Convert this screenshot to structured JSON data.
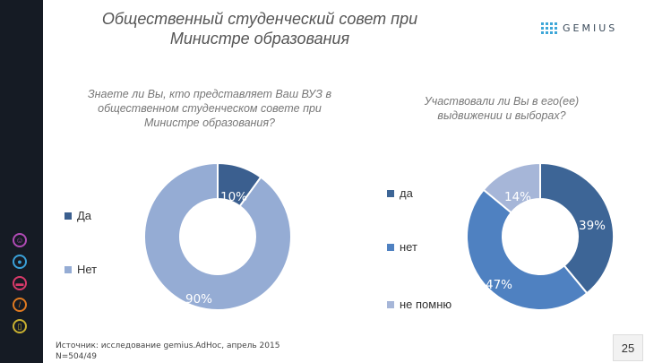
{
  "slide": {
    "title": "Общественный студенческий совет при Министре образования",
    "logo_text": "GEMIUS",
    "source_line1": "Источник: исследование gemius.AdHoc, апрель 2015",
    "source_line2": "N=504/49",
    "page_number": "25",
    "sidebar_icons": [
      "people-icon",
      "lightbulb-icon",
      "chat-icon",
      "wrench-icon",
      "document-icon"
    ]
  },
  "chart_data": [
    {
      "type": "pie",
      "title": "Знаете ли Вы, кто представляет Ваш ВУЗ в общественном студенческом совете при Министре образования?",
      "categories": [
        "Да",
        "Нет"
      ],
      "values": [
        10,
        90
      ],
      "labels": [
        "10%",
        "90%"
      ],
      "colors": [
        "#3b5f8f",
        "#95acd4"
      ],
      "legend_position": "left"
    },
    {
      "type": "pie",
      "title": "Участвовали ли Вы в его(ее) выдвижении и выборах?",
      "categories": [
        "да",
        "нет",
        "не помню"
      ],
      "values": [
        39,
        47,
        14
      ],
      "labels": [
        "39%",
        "47%",
        "14%"
      ],
      "colors": [
        "#3d6596",
        "#4f81c1",
        "#a6b6d8"
      ],
      "legend_position": "left"
    }
  ]
}
